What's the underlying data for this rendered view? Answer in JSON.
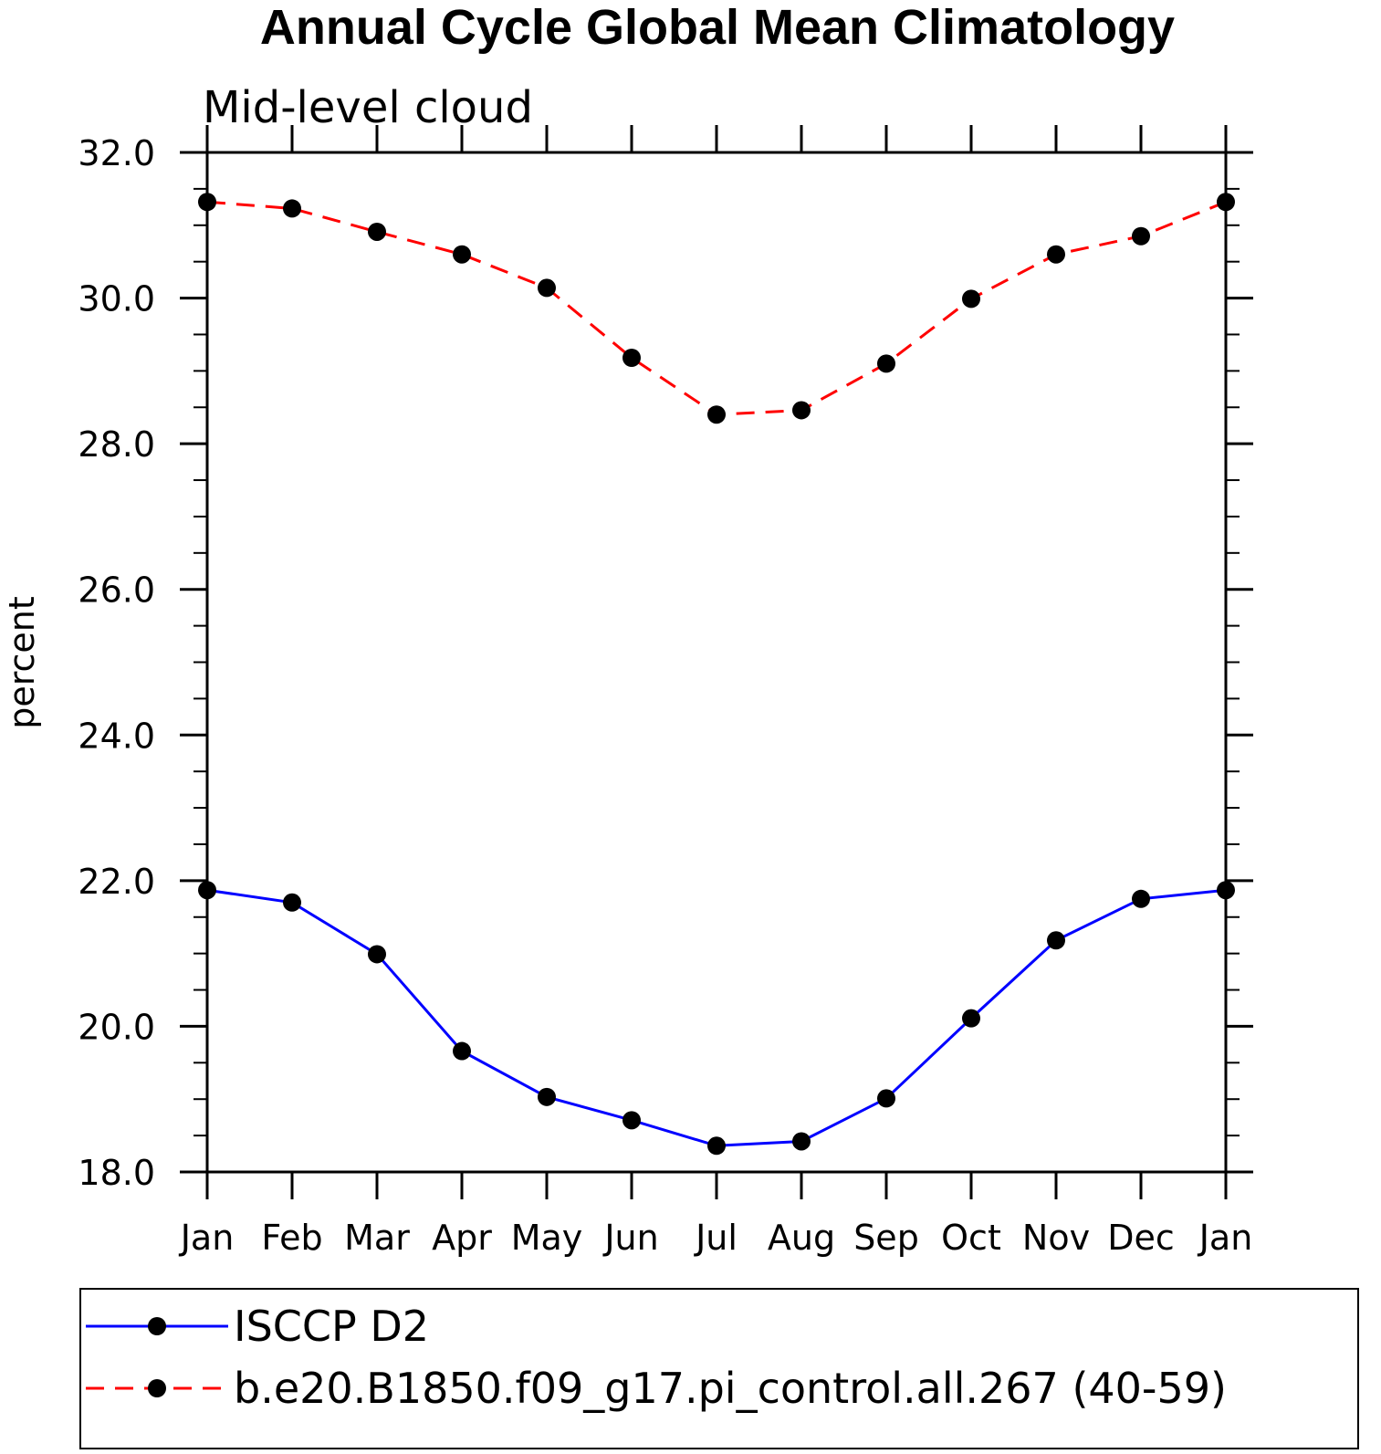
{
  "chart_data": {
    "type": "line",
    "title": "Annual Cycle Global Mean Climatology",
    "subtitle": "Mid-level cloud",
    "ylabel": "percent",
    "xlabel": "",
    "categories": [
      "Jan",
      "Feb",
      "Mar",
      "Apr",
      "May",
      "Jun",
      "Jul",
      "Aug",
      "Sep",
      "Oct",
      "Nov",
      "Dec",
      "Jan"
    ],
    "ylim": [
      18.0,
      32.0
    ],
    "yticks": [
      18.0,
      20.0,
      22.0,
      24.0,
      26.0,
      28.0,
      30.0,
      32.0
    ],
    "ytick_labels": [
      "18.0",
      "20.0",
      "22.0",
      "24.0",
      "26.0",
      "28.0",
      "30.0",
      "32.0"
    ],
    "grid": false,
    "legend_placement": "bottom",
    "series": [
      {
        "name": "ISCCP D2",
        "color": "#0000ff",
        "dash": "solid",
        "marker": "circle",
        "values": [
          21.87,
          21.7,
          20.99,
          19.66,
          19.03,
          18.71,
          18.36,
          18.42,
          19.01,
          20.11,
          21.18,
          21.75,
          21.87
        ]
      },
      {
        "name": "b.e20.B1850.f09_g17.pi_control.all.267 (40-59)",
        "color": "#ff0000",
        "dash": "dashed",
        "marker": "circle",
        "values": [
          31.32,
          31.23,
          30.91,
          30.6,
          30.14,
          29.18,
          28.4,
          28.46,
          29.1,
          29.99,
          30.6,
          30.85,
          31.32
        ]
      }
    ]
  }
}
